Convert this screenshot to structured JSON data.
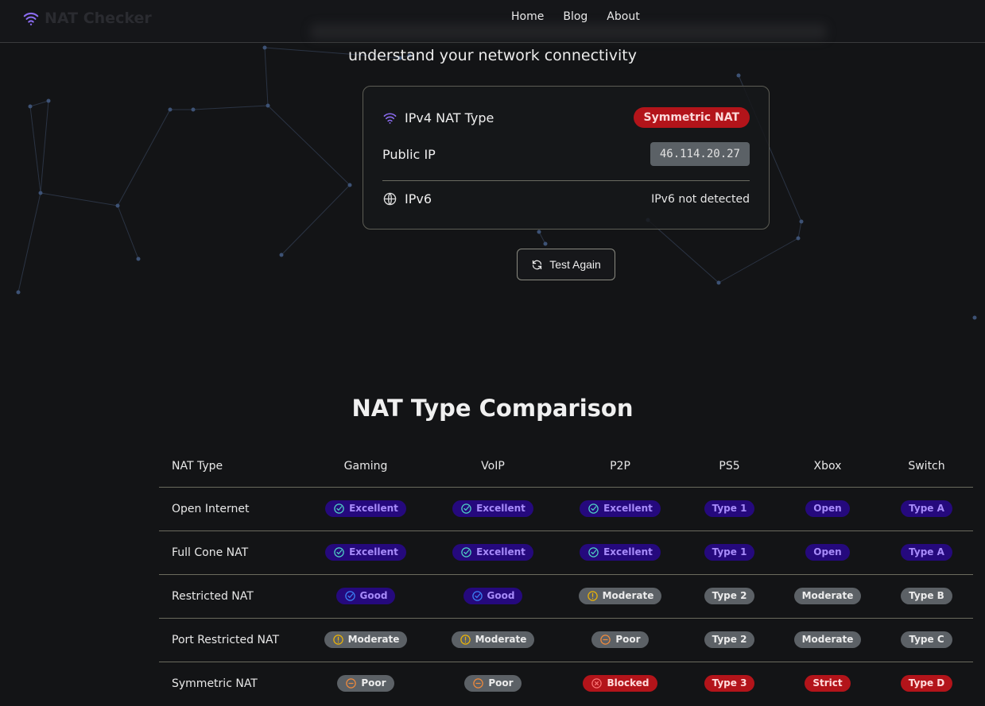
{
  "header": {
    "logo_text": "NAT Checker",
    "nav": [
      "Home",
      "Blog",
      "About"
    ]
  },
  "hero": {
    "subtitle": "understand your network connectivity"
  },
  "result": {
    "ipv4_label": "IPv4 NAT Type",
    "ipv4_value": "Symmetric NAT",
    "public_ip_label": "Public IP",
    "public_ip": "46.114.20.27",
    "ipv6_label": "IPv6",
    "ipv6_value": "IPv6 not detected",
    "test_again": "Test Again"
  },
  "comparison": {
    "title": "NAT Type Comparison",
    "columns": [
      "NAT Type",
      "Gaming",
      "VoIP",
      "P2P",
      "PS5",
      "Xbox",
      "Switch"
    ],
    "rows": [
      {
        "name": "Open Internet",
        "cells": [
          [
            "Excellent",
            "blue",
            "check"
          ],
          [
            "Excellent",
            "blue",
            "check"
          ],
          [
            "Excellent",
            "blue",
            "check"
          ],
          [
            "Type 1",
            "blue",
            ""
          ],
          [
            "Open",
            "blue",
            ""
          ],
          [
            "Type A",
            "blue",
            ""
          ]
        ]
      },
      {
        "name": "Full Cone NAT",
        "cells": [
          [
            "Excellent",
            "blue",
            "check"
          ],
          [
            "Excellent",
            "blue",
            "check"
          ],
          [
            "Excellent",
            "blue",
            "check"
          ],
          [
            "Type 1",
            "blue",
            ""
          ],
          [
            "Open",
            "blue",
            ""
          ],
          [
            "Type A",
            "blue",
            ""
          ]
        ]
      },
      {
        "name": "Restricted NAT",
        "cells": [
          [
            "Good",
            "blue",
            "check-good"
          ],
          [
            "Good",
            "blue",
            "check-good"
          ],
          [
            "Moderate",
            "gray",
            "alert"
          ],
          [
            "Type 2",
            "gray",
            ""
          ],
          [
            "Moderate",
            "gray",
            ""
          ],
          [
            "Type B",
            "gray",
            ""
          ]
        ]
      },
      {
        "name": "Port Restricted NAT",
        "cells": [
          [
            "Moderate",
            "gray",
            "alert"
          ],
          [
            "Moderate",
            "gray",
            "alert"
          ],
          [
            "Poor",
            "gray",
            "minus"
          ],
          [
            "Type 2",
            "gray",
            ""
          ],
          [
            "Moderate",
            "gray",
            ""
          ],
          [
            "Type C",
            "gray",
            ""
          ]
        ]
      },
      {
        "name": "Symmetric NAT",
        "cells": [
          [
            "Poor",
            "gray",
            "minus"
          ],
          [
            "Poor",
            "gray",
            "minus"
          ],
          [
            "Blocked",
            "red",
            "x"
          ],
          [
            "Type 3",
            "red",
            ""
          ],
          [
            "Strict",
            "red",
            ""
          ],
          [
            "Type D",
            "red",
            ""
          ]
        ]
      }
    ]
  },
  "colors": {
    "accent": "#a78bfa",
    "good_bg": "#25097d",
    "neutral_bg": "#5c6166",
    "bad_bg": "#b3141a"
  }
}
